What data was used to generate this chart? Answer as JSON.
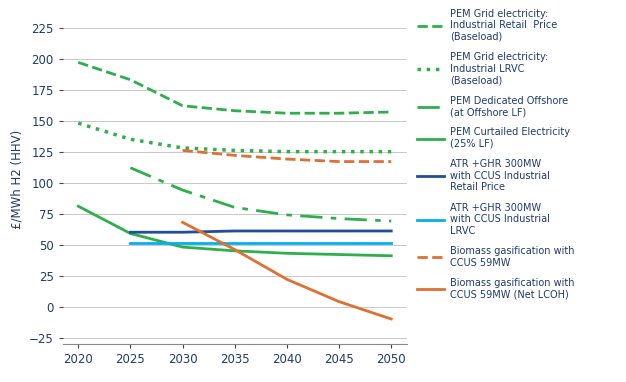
{
  "x": [
    2020,
    2025,
    2030,
    2035,
    2040,
    2045,
    2050
  ],
  "series": [
    {
      "name": "PEM Grid electricity:\nIndustrial Retail  Price\n(Baseload)",
      "color": "#2db04b",
      "linestyle": "--",
      "linewidth": 2.0,
      "dash_pattern": null,
      "values": [
        197,
        183,
        162,
        158,
        156,
        156,
        157
      ]
    },
    {
      "name": "PEM Grid electricity:\nIndustrial LRVC\n(Baseload)",
      "color": "#2db04b",
      "linestyle": ":",
      "linewidth": 2.5,
      "dash_pattern": null,
      "values": [
        148,
        135,
        128,
        126,
        125,
        125,
        125
      ]
    },
    {
      "name": "PEM Dedicated Offshore\n(at Offshore LF)",
      "color": "#2db04b",
      "linestyle": null,
      "linewidth": 2.0,
      "dash_pattern": [
        8,
        3,
        2,
        3
      ],
      "values": [
        null,
        112,
        94,
        80,
        74,
        71,
        69
      ]
    },
    {
      "name": "PEM Curtailed Electricity\n(25% LF)",
      "color": "#2db04b",
      "linestyle": "-",
      "linewidth": 2.0,
      "dash_pattern": null,
      "values": [
        81,
        59,
        48,
        45,
        43,
        42,
        41
      ]
    },
    {
      "name": "ATR +GHR 300MW\nwith CCUS Industrial\nRetail Price",
      "color": "#1f4e9c",
      "linestyle": "-",
      "linewidth": 2.0,
      "dash_pattern": null,
      "values": [
        null,
        60,
        60,
        61,
        61,
        61,
        61
      ]
    },
    {
      "name": "ATR +GHR 300MW\nwith CCUS Industrial\nLRVC",
      "color": "#00b0f0",
      "linestyle": "-",
      "linewidth": 2.0,
      "dash_pattern": null,
      "values": [
        null,
        51,
        51,
        51,
        51,
        51,
        51
      ]
    },
    {
      "name": "Biomass gasification with\nCCUS 59MW",
      "color": "#e07030",
      "linestyle": "--",
      "linewidth": 2.0,
      "dash_pattern": null,
      "values": [
        null,
        null,
        126,
        122,
        119,
        117,
        117
      ]
    },
    {
      "name": "Biomass gasification with\nCCUS 59MW (Net LCOH)",
      "color": "#e07030",
      "linestyle": "-",
      "linewidth": 2.0,
      "dash_pattern": null,
      "values": [
        null,
        null,
        68,
        46,
        22,
        4,
        -10
      ]
    }
  ],
  "ylabel": "£/MWh H2 (HHV)",
  "ylim": [
    -30,
    235
  ],
  "yticks": [
    -25,
    0,
    25,
    50,
    75,
    100,
    125,
    150,
    175,
    200,
    225
  ],
  "xlim": [
    2018.5,
    2051.5
  ],
  "xticks": [
    2020,
    2025,
    2030,
    2035,
    2040,
    2045,
    2050
  ],
  "grid_color": "#c8c8c8",
  "background_color": "#ffffff",
  "legend_fontsize": 7.0,
  "ylabel_fontsize": 8.5,
  "tick_fontsize": 8.5,
  "legend_text_color": "#1f3b6e",
  "label_text_color": "#1f3b6e",
  "tick_color": "#444444"
}
